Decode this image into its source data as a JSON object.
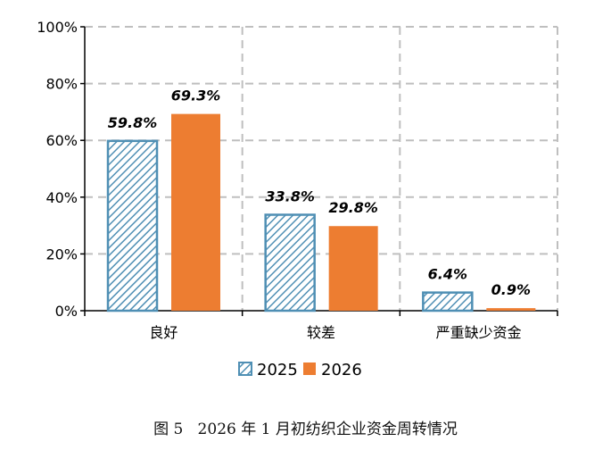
{
  "caption": "图 5   2026 年 1 月初纺织企业资金周转情况",
  "chart_data": {
    "type": "bar",
    "categories": [
      "良好",
      "较差",
      "严重缺少资金"
    ],
    "series": [
      {
        "name": "2025",
        "values": [
          59.8,
          33.8,
          6.4
        ],
        "labels": [
          "59.8%",
          "33.8%",
          "6.4%"
        ],
        "color": "#4f8fb4",
        "pattern": "diagonal-hatch"
      },
      {
        "name": "2026",
        "values": [
          69.3,
          29.8,
          0.9
        ],
        "labels": [
          "69.3%",
          "29.8%",
          "0.9%"
        ],
        "color": "#ed7d31",
        "pattern": "solid"
      }
    ],
    "ylim": [
      0,
      100
    ],
    "yticks": [
      "0%",
      "20%",
      "40%",
      "60%",
      "80%",
      "100%"
    ],
    "grid": true,
    "legend_position": "bottom"
  }
}
